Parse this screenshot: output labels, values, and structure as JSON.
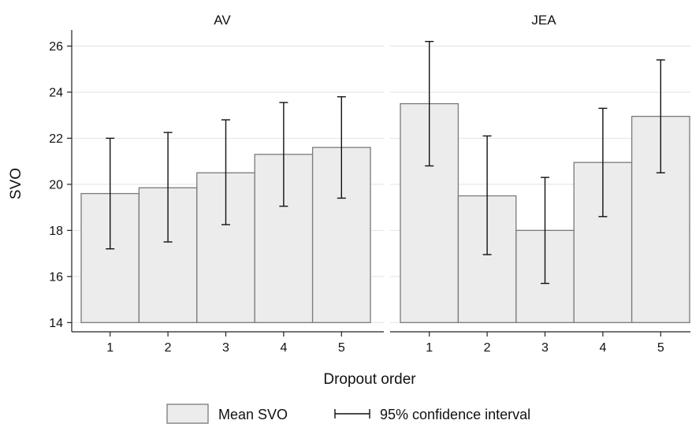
{
  "chart_data": {
    "type": "bar",
    "ylabel": "SVO",
    "xlabel": "Dropout order",
    "ylim": [
      13.6,
      26.7
    ],
    "yticks": [
      14,
      16,
      18,
      20,
      22,
      24,
      26
    ],
    "grid": true,
    "legend_position": "bottom",
    "categories": [
      "1",
      "2",
      "3",
      "4",
      "5"
    ],
    "panels": [
      {
        "title": "AV",
        "values": [
          19.6,
          19.85,
          20.5,
          21.3,
          21.6
        ],
        "ci_low": [
          17.2,
          17.5,
          18.25,
          19.05,
          19.4
        ],
        "ci_high": [
          22.0,
          22.25,
          22.8,
          23.55,
          23.8
        ]
      },
      {
        "title": "JEA",
        "values": [
          23.5,
          19.5,
          18.0,
          20.95,
          22.95
        ],
        "ci_low": [
          20.8,
          16.95,
          15.7,
          18.6,
          20.5
        ],
        "ci_high": [
          26.2,
          22.1,
          20.3,
          23.3,
          25.4
        ]
      }
    ],
    "legend": {
      "bar_label": "Mean SVO",
      "ci_label": "95% confidence interval"
    },
    "colors": {
      "bar_fill": "#ececec",
      "bar_stroke": "#7a7a7a",
      "ci": "#111111",
      "grid": "#e2e2e2",
      "axis": "#222222"
    }
  }
}
